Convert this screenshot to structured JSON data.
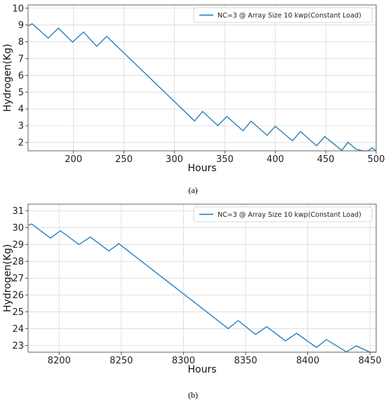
{
  "chart_data": [
    {
      "type": "line",
      "panel_label": "(a)",
      "xlabel": "Hours",
      "ylabel": "Hydrogen(Kg)",
      "xlim": [
        155,
        500
      ],
      "ylim": [
        1.5,
        10.2
      ],
      "xticks": [
        200,
        250,
        300,
        350,
        400,
        450,
        500
      ],
      "yticks": [
        2,
        3,
        4,
        5,
        6,
        7,
        8,
        9,
        10
      ],
      "grid": true,
      "legend_position": "top-right",
      "series": [
        {
          "name": "NC=3 @ Array Size 10 kwp(Constant Load)",
          "color": "#1f77b4",
          "x": [
            155,
            159,
            175,
            185,
            199,
            210,
            223,
            233,
            320,
            328,
            343,
            352,
            368,
            376,
            392,
            400,
            417,
            425,
            441,
            449,
            466,
            472,
            480,
            487,
            492,
            496,
            500
          ],
          "y": [
            8.95,
            9.08,
            8.22,
            8.82,
            7.98,
            8.58,
            7.73,
            8.32,
            3.28,
            3.85,
            3.0,
            3.55,
            2.7,
            3.27,
            2.42,
            2.97,
            2.1,
            2.65,
            1.8,
            2.35,
            1.52,
            2.02,
            1.6,
            1.5,
            1.5,
            1.68,
            1.5
          ]
        }
      ]
    },
    {
      "type": "line",
      "panel_label": "(b)",
      "xlabel": "Hours",
      "ylabel": "Hydrogen(Kg)",
      "xlim": [
        8175,
        8455
      ],
      "ylim": [
        22.6,
        31.4
      ],
      "xticks": [
        8200,
        8250,
        8300,
        8350,
        8400,
        8450
      ],
      "yticks": [
        23,
        24,
        25,
        26,
        27,
        28,
        29,
        30,
        31
      ],
      "grid": true,
      "legend_position": "top-right",
      "series": [
        {
          "name": "NC=3 @ Array Size 10 kwp(Constant Load)",
          "color": "#1f77b4",
          "x": [
            8175,
            8178,
            8193,
            8201,
            8216,
            8225,
            8240,
            8248,
            8336,
            8344,
            8358,
            8367,
            8382,
            8391,
            8407,
            8415,
            8431,
            8439,
            8450,
            8455
          ],
          "y": [
            30.15,
            30.22,
            29.38,
            29.82,
            29.0,
            29.45,
            28.62,
            29.05,
            24.0,
            24.48,
            23.65,
            24.12,
            23.27,
            23.72,
            22.88,
            23.35,
            22.62,
            22.97,
            22.6,
            22.6
          ]
        }
      ]
    }
  ]
}
